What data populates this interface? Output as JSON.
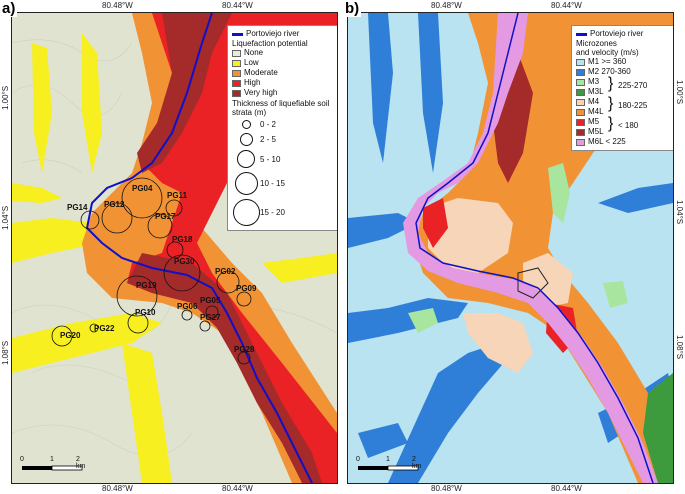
{
  "panel_a": {
    "label": "a)",
    "coords": {
      "top": [
        "80.48°W",
        "80.44°W"
      ],
      "bottom": [
        "80.48°W",
        "80.44°W"
      ],
      "left": [
        "1.00°S",
        "1.04°S",
        "1.08°S"
      ]
    },
    "legend": {
      "river_label": "Portoviejo river",
      "title": "Liquefaction potential",
      "classes": [
        {
          "label": "None",
          "color": "#e9edd8"
        },
        {
          "label": "Low",
          "color": "#f7ef1f"
        },
        {
          "label": "Moderate",
          "color": "#f19335"
        },
        {
          "label": "High",
          "color": "#ea2125"
        },
        {
          "label": "Very high",
          "color": "#a52a2a"
        }
      ],
      "thickness_title": "Thickness of liquefiable soil strata (m)",
      "thickness_classes": [
        "0 - 2",
        "2 - 5",
        "5 - 10",
        "10 - 15",
        "15 - 20"
      ]
    },
    "stations": [
      "PG04",
      "PG11",
      "PG14",
      "PG12",
      "PG17",
      "PG18",
      "PG30",
      "PG02",
      "PG19",
      "PG09",
      "PG05",
      "PG06",
      "PG10",
      "PG27",
      "PG20",
      "PG22",
      "PG28"
    ],
    "scale": {
      "labels": [
        "0",
        "1",
        "2 km"
      ]
    }
  },
  "panel_b": {
    "label": "b)",
    "coords": {
      "top": [
        "80.48°W",
        "80.44°W"
      ],
      "bottom": [
        "80.48°W",
        "80.44°W"
      ],
      "right": [
        "1.00°S",
        "1.04°S",
        "1.08°S"
      ]
    },
    "legend": {
      "river_label": "Portoviejo river",
      "title_line1": "Microzones",
      "title_line2": "and velocity (m/s)",
      "zones": [
        {
          "label": "M1 >= 360",
          "color": "#b9e3f0"
        },
        {
          "label": "M2  270-360",
          "color": "#2f7fd8"
        },
        {
          "label": "M3",
          "color": "#a8e6a0"
        },
        {
          "label": "M3L",
          "color": "#3d9a3d"
        },
        {
          "label": "M4",
          "color": "#f6d5b8"
        },
        {
          "label": "M4L",
          "color": "#f19335"
        },
        {
          "label": "M5",
          "color": "#ea2125"
        },
        {
          "label": "M5L",
          "color": "#a52a2a"
        },
        {
          "label": "M6L < 225",
          "color": "#e39ae2"
        }
      ],
      "brace_labels": [
        "225-270",
        "180-225",
        "< 180"
      ]
    },
    "scale": {
      "labels": [
        "0",
        "1",
        "2 km"
      ]
    }
  }
}
